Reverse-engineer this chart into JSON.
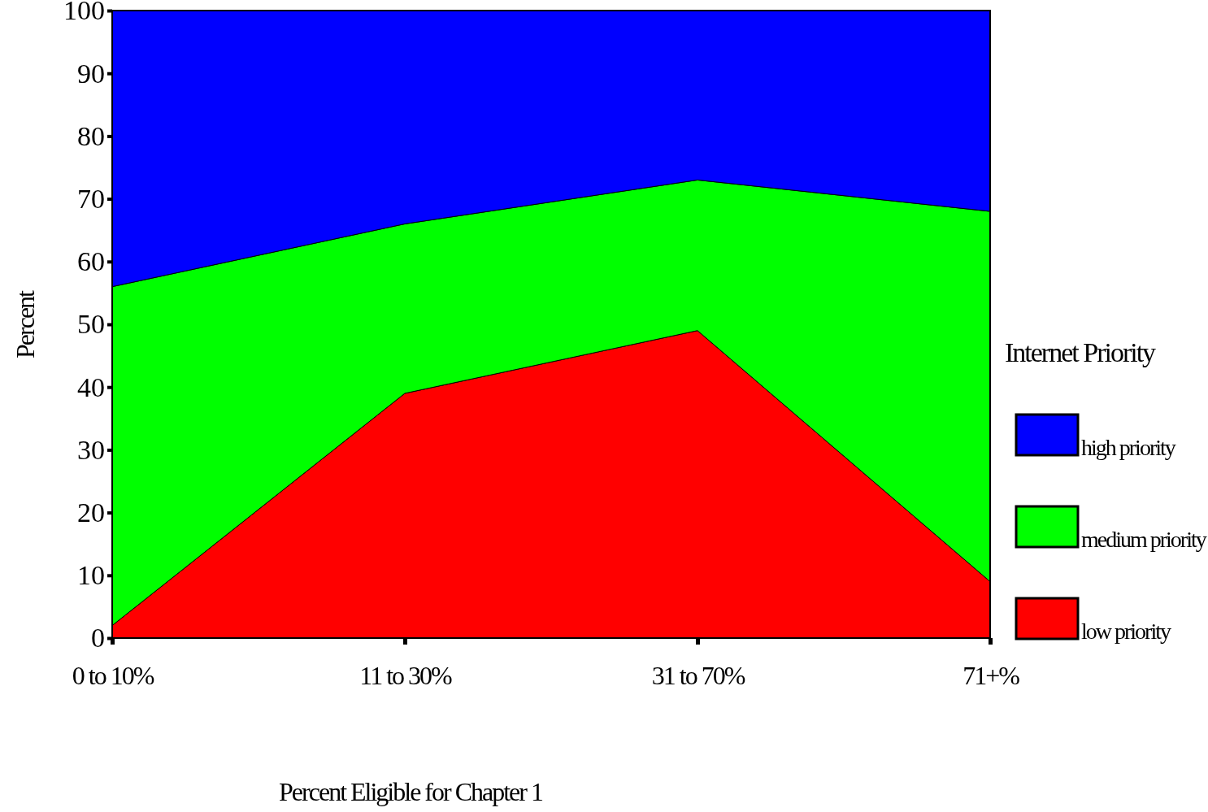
{
  "chart_data": {
    "type": "area",
    "stacked": true,
    "xlabel": "Percent Eligible for Chapter 1",
    "ylabel": "Percent",
    "legend_title": "Internet Priority",
    "legend": "right",
    "categories": [
      "0 to 10%",
      "11 to 30%",
      "31 to 70%",
      "71+%"
    ],
    "ylim": [
      0,
      100
    ],
    "yticks": [
      0,
      10,
      20,
      30,
      40,
      50,
      60,
      70,
      80,
      90,
      100
    ],
    "series": [
      {
        "name": "low priority",
        "color": "#ff0000",
        "values": [
          2,
          39,
          49,
          9
        ]
      },
      {
        "name": "medium priority",
        "color": "#00ff00",
        "values": [
          54,
          27,
          24,
          59
        ]
      },
      {
        "name": "high priority",
        "color": "#0000ff",
        "values": [
          44,
          34,
          27,
          32
        ]
      }
    ]
  }
}
